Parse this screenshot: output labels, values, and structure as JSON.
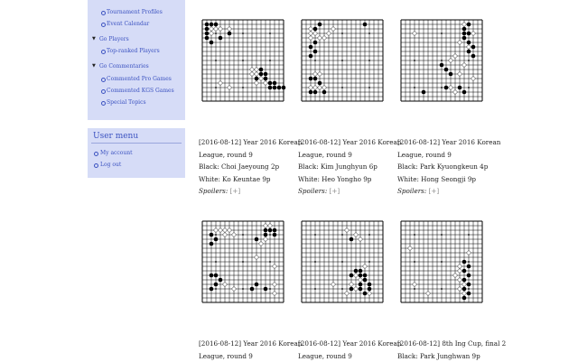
{
  "sidebar": {
    "items": [
      {
        "label": "Tournament Profiles",
        "level": "sub"
      },
      {
        "label": "Event Calendar",
        "level": "sub"
      },
      {
        "label": "Go Players",
        "level": "top"
      },
      {
        "label": "Top-ranked Players",
        "level": "sub"
      },
      {
        "label": "Go Commentaries",
        "level": "top"
      },
      {
        "label": "Commented Pro Games",
        "level": "sub"
      },
      {
        "label": "Commented KGS Games",
        "level": "sub"
      },
      {
        "label": "Special Topics",
        "level": "sub"
      }
    ]
  },
  "user_menu": {
    "title": "User menu",
    "items": [
      "My account",
      "Log out"
    ]
  },
  "games": [
    {
      "line1": "[2016-08-12] Year 2016 Korean",
      "line2": "League, round 9",
      "line3": "Black: Choi Jaeyoung 2p",
      "line4": "White: Ko Keuntae 9p",
      "spoilers_label": "Spoilers:",
      "spoilers_toggle": "[+]",
      "black": [
        [
          1,
          1
        ],
        [
          1,
          2
        ],
        [
          2,
          1
        ],
        [
          3,
          1
        ],
        [
          1,
          3
        ],
        [
          1,
          4
        ],
        [
          2,
          5
        ],
        [
          6,
          3
        ],
        [
          4,
          4
        ],
        [
          13,
          11
        ],
        [
          13,
          12
        ],
        [
          14,
          12
        ],
        [
          12,
          13
        ],
        [
          14,
          13
        ],
        [
          15,
          14
        ],
        [
          16,
          14
        ],
        [
          17,
          15
        ],
        [
          15,
          15
        ],
        [
          16,
          15
        ],
        [
          18,
          15
        ]
      ],
      "white": [
        [
          2,
          2
        ],
        [
          3,
          2
        ],
        [
          2,
          3
        ],
        [
          4,
          2
        ],
        [
          6,
          2
        ],
        [
          11,
          11
        ],
        [
          12,
          11
        ],
        [
          12,
          12
        ],
        [
          11,
          12
        ],
        [
          13,
          13
        ],
        [
          4,
          14
        ],
        [
          6,
          15
        ],
        [
          14,
          14
        ],
        [
          12,
          14
        ]
      ]
    },
    {
      "line1": "[2016-08-12] Year 2016 Korean",
      "line2": "League, round 9",
      "line3": "Black: Kim Junghyun 6p",
      "line4": "White: Heo Yongho 9p",
      "spoilers_label": "Spoilers:",
      "spoilers_toggle": "[+]",
      "black": [
        [
          4,
          1
        ],
        [
          3,
          2
        ],
        [
          3,
          5
        ],
        [
          2,
          6
        ],
        [
          3,
          7
        ],
        [
          2,
          8
        ],
        [
          2,
          13
        ],
        [
          3,
          13
        ],
        [
          4,
          14
        ],
        [
          2,
          16
        ],
        [
          3,
          16
        ],
        [
          5,
          16
        ],
        [
          14,
          1
        ]
      ],
      "white": [
        [
          2,
          2
        ],
        [
          2,
          3
        ],
        [
          3,
          3
        ],
        [
          2,
          4
        ],
        [
          4,
          4
        ],
        [
          5,
          4
        ],
        [
          6,
          3
        ],
        [
          7,
          2
        ],
        [
          3,
          12
        ],
        [
          4,
          12
        ],
        [
          2,
          15
        ],
        [
          3,
          15
        ],
        [
          4,
          15
        ],
        [
          5,
          15
        ]
      ]
    },
    {
      "line1": "[2016-08-12] Year 2016 Korean",
      "line2": "League, round 9",
      "line3": "Black: Park Kyuongkeun 4p",
      "line4": "White: Hong Seongji 9p",
      "spoilers_label": "Spoilers:",
      "spoilers_toggle": "[+]",
      "black": [
        [
          15,
          1
        ],
        [
          14,
          2
        ],
        [
          14,
          3
        ],
        [
          15,
          3
        ],
        [
          14,
          4
        ],
        [
          15,
          5
        ],
        [
          16,
          6
        ],
        [
          15,
          7
        ],
        [
          16,
          8
        ],
        [
          9,
          10
        ],
        [
          10,
          11
        ],
        [
          11,
          12
        ],
        [
          13,
          15
        ],
        [
          14,
          16
        ],
        [
          10,
          15
        ],
        [
          5,
          16
        ]
      ],
      "white": [
        [
          14,
          1
        ],
        [
          16,
          3
        ],
        [
          13,
          5
        ],
        [
          15,
          6
        ],
        [
          12,
          8
        ],
        [
          11,
          9
        ],
        [
          14,
          10
        ],
        [
          13,
          12
        ],
        [
          16,
          13
        ],
        [
          11,
          15
        ],
        [
          12,
          16
        ],
        [
          3,
          3
        ]
      ]
    },
    {
      "line1": "[2016-08-12] Year 2016 Korean",
      "line2": "League, round 9",
      "black": [
        [
          14,
          2
        ],
        [
          15,
          2
        ],
        [
          16,
          2
        ],
        [
          14,
          3
        ],
        [
          16,
          3
        ],
        [
          12,
          4
        ],
        [
          2,
          3
        ],
        [
          3,
          4
        ],
        [
          2,
          5
        ],
        [
          3,
          12
        ],
        [
          4,
          13
        ],
        [
          3,
          14
        ],
        [
          2,
          15
        ],
        [
          12,
          14
        ],
        [
          11,
          15
        ],
        [
          14,
          15
        ],
        [
          2,
          12
        ]
      ],
      "white": [
        [
          3,
          2
        ],
        [
          4,
          2
        ],
        [
          5,
          2
        ],
        [
          6,
          2
        ],
        [
          5,
          3
        ],
        [
          7,
          3
        ],
        [
          14,
          1
        ],
        [
          15,
          1
        ],
        [
          14,
          4
        ],
        [
          13,
          5
        ],
        [
          12,
          8
        ],
        [
          16,
          10
        ],
        [
          5,
          14
        ],
        [
          7,
          15
        ],
        [
          16,
          14
        ],
        [
          16,
          16
        ]
      ]
    },
    {
      "line1": "[2016-08-12] Year 2016 Korean",
      "line2": "League, round 9",
      "black": [
        [
          11,
          4
        ],
        [
          12,
          11
        ],
        [
          13,
          11
        ],
        [
          11,
          12
        ],
        [
          13,
          12
        ],
        [
          14,
          12
        ],
        [
          14,
          13
        ],
        [
          13,
          14
        ],
        [
          15,
          14
        ],
        [
          13,
          15
        ],
        [
          15,
          15
        ],
        [
          14,
          16
        ],
        [
          11,
          15
        ]
      ],
      "white": [
        [
          12,
          3
        ],
        [
          13,
          4
        ],
        [
          10,
          2
        ],
        [
          13,
          13
        ],
        [
          12,
          12
        ],
        [
          11,
          14
        ],
        [
          12,
          15
        ],
        [
          10,
          16
        ],
        [
          7,
          14
        ],
        [
          14,
          10
        ],
        [
          15,
          16
        ]
      ]
    },
    {
      "line1": "[2016-08-12] 8th Ing Cup, final 2",
      "line2": "Black: Park Junghwan 9p",
      "black": [
        [
          14,
          9
        ],
        [
          15,
          10
        ],
        [
          14,
          11
        ],
        [
          15,
          12
        ],
        [
          14,
          13
        ],
        [
          15,
          14
        ],
        [
          14,
          15
        ],
        [
          15,
          16
        ],
        [
          14,
          17
        ]
      ],
      "white": [
        [
          13,
          10
        ],
        [
          13,
          11
        ],
        [
          12,
          12
        ],
        [
          13,
          13
        ],
        [
          14,
          14
        ],
        [
          14,
          16
        ],
        [
          3,
          14
        ],
        [
          6,
          16
        ],
        [
          2,
          6
        ],
        [
          13,
          15
        ],
        [
          15,
          7
        ]
      ]
    }
  ]
}
